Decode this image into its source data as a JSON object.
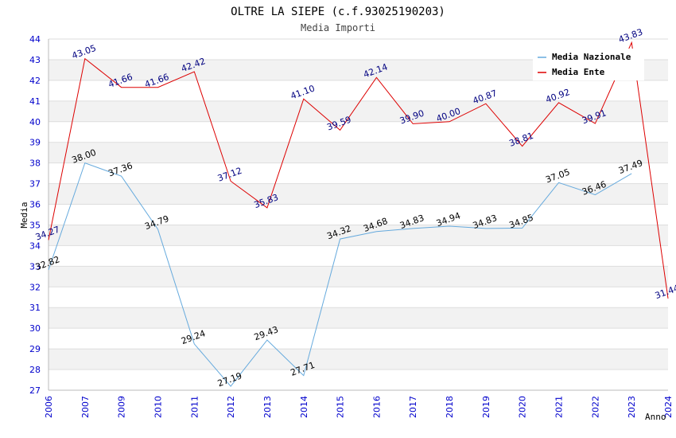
{
  "chart_data": {
    "type": "line",
    "title": "OLTRE LA SIEPE (c.f.93025190203)",
    "subtitle": "Media Importi",
    "xlabel": "Anno",
    "ylabel": "Media",
    "ylim": [
      27,
      44
    ],
    "yticks": [
      "27",
      "28",
      "29",
      "30",
      "31",
      "32",
      "33",
      "34",
      "35",
      "36",
      "37",
      "38",
      "39",
      "40",
      "41",
      "42",
      "43",
      "44"
    ],
    "categories": [
      "2006",
      "2007",
      "2009",
      "2010",
      "2011",
      "2012",
      "2013",
      "2014",
      "2015",
      "2016",
      "2017",
      "2018",
      "2019",
      "2020",
      "2021",
      "2022",
      "2023",
      "2024"
    ],
    "grid": true,
    "legend_position": "top-right",
    "series": [
      {
        "name": "Media Nazionale",
        "color": "#66aadd",
        "label_color": "#000000",
        "values": [
          32.82,
          38.0,
          37.36,
          34.79,
          29.24,
          27.19,
          29.43,
          27.71,
          34.32,
          34.68,
          34.83,
          34.94,
          34.83,
          34.85,
          37.05,
          36.46,
          37.49,
          null
        ],
        "labels": [
          "32.82",
          "38.00",
          "37.36",
          "34.79",
          "29.24",
          "27.19",
          "29.43",
          "27.71",
          "34.32",
          "34.68",
          "34.83",
          "34.94",
          "34.83",
          "34.85",
          "37.05",
          "36.46",
          "37.49",
          ""
        ]
      },
      {
        "name": "Media Ente",
        "color": "#dd0000",
        "label_color": "#000080",
        "values": [
          34.27,
          43.05,
          41.66,
          41.66,
          42.42,
          37.12,
          35.83,
          41.1,
          39.59,
          42.14,
          39.9,
          40.0,
          40.87,
          38.81,
          40.92,
          39.91,
          43.83,
          31.44
        ],
        "labels": [
          "34.27",
          "43.05",
          "41.66",
          "41.66",
          "42.42",
          "37.12",
          "35.83",
          "41.10",
          "39.59",
          "42.14",
          "39.90",
          "40.00",
          "40.87",
          "38.81",
          "40.92",
          "39.91",
          "43.83",
          "31.44"
        ]
      }
    ]
  },
  "colors": {
    "axis_tick_text": "#0000cc",
    "band": "#f2f2f2",
    "grid": "#dddddd"
  }
}
